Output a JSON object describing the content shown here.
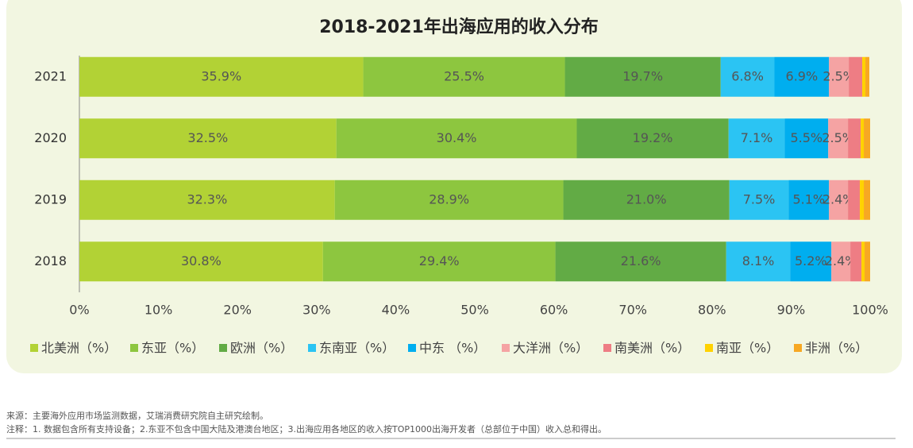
{
  "chart_data": {
    "type": "stacked-barh",
    "title": "2018-2021年出海应用的收入分布",
    "categories": [
      "2021",
      "2020",
      "2019",
      "2018"
    ],
    "series": [
      {
        "name": "北美洲（%）",
        "color": "#b2d235",
        "values": [
          35.9,
          32.5,
          32.3,
          30.8
        ],
        "value_labels": [
          "35.9%",
          "32.5%",
          "32.3%",
          "30.8%"
        ]
      },
      {
        "name": "东亚（%）",
        "color": "#8dc63f",
        "values": [
          25.5,
          30.4,
          28.9,
          29.4
        ],
        "value_labels": [
          "25.5%",
          "30.4%",
          "28.9%",
          "29.4%"
        ]
      },
      {
        "name": "欧洲（%）",
        "color": "#62ab45",
        "values": [
          19.7,
          19.2,
          21.0,
          21.6
        ],
        "value_labels": [
          "19.7%",
          "19.2%",
          "21.0%",
          "21.6%"
        ]
      },
      {
        "name": "东南亚（%）",
        "color": "#2bc4f3",
        "values": [
          6.8,
          7.1,
          7.5,
          8.1
        ],
        "value_labels": [
          "6.8%",
          "7.1%",
          "7.5%",
          "8.1%"
        ]
      },
      {
        "name": "中东 （%）",
        "color": "#00aeef",
        "values": [
          6.9,
          5.5,
          5.1,
          5.2
        ],
        "value_labels": [
          "6.9%",
          "5.5%",
          "5.1%",
          "5.2%"
        ]
      },
      {
        "name": "大洋洲（%）",
        "color": "#f5a3a3",
        "values": [
          2.5,
          2.5,
          2.4,
          2.4
        ],
        "value_labels": [
          "2.5%",
          "2.5%",
          "2.4%",
          "2.4%"
        ]
      },
      {
        "name": "南美洲（%）",
        "color": "#ee7d84",
        "values": [
          1.7,
          1.6,
          1.5,
          1.4
        ]
      },
      {
        "name": "南亚（%）",
        "color": "#ffd200",
        "values": [
          0.4,
          0.4,
          0.5,
          0.4
        ]
      },
      {
        "name": "非洲（%）",
        "color": "#f7a823",
        "values": [
          0.5,
          0.8,
          0.8,
          0.7
        ]
      }
    ],
    "xlim": [
      0,
      100
    ],
    "xticks": [
      {
        "value": 0,
        "label": "0%"
      },
      {
        "value": 10,
        "label": "10%"
      },
      {
        "value": 20,
        "label": "20%"
      },
      {
        "value": 30,
        "label": "30%"
      },
      {
        "value": 40,
        "label": "40%"
      },
      {
        "value": 50,
        "label": "50%"
      },
      {
        "value": 60,
        "label": "60%"
      },
      {
        "value": 70,
        "label": "70%"
      },
      {
        "value": 80,
        "label": "80%"
      },
      {
        "value": 90,
        "label": "90%"
      },
      {
        "value": 100,
        "label": "100%"
      }
    ]
  },
  "footer": {
    "source": "来源：主要海外应用市场监测数据，艾瑞消费研究院自主研究绘制。",
    "note": "注释：1. 数据包含所有支持设备；2.东亚不包含中国大陆及港澳台地区；3.出海应用各地区的收入按TOP1000出海开发者（总部位于中国）收入总和得出。"
  }
}
